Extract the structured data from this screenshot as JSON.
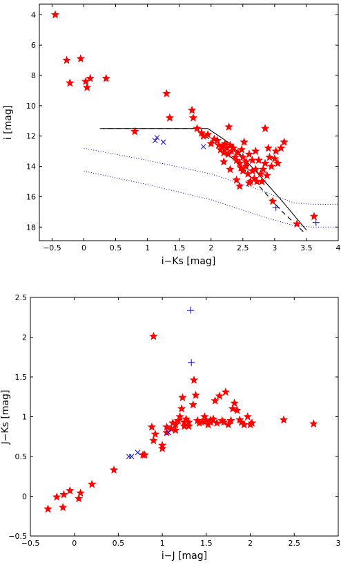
{
  "colors": {
    "stars": "#ff0000",
    "crosses": "#0000ff",
    "iso_lines": "#000000",
    "dotted": "#0000cc"
  },
  "chart_data": [
    {
      "type": "scatter",
      "xlabel": "i−Ks [mag]",
      "ylabel": "i [mag]",
      "xlim": [
        -0.7,
        4
      ],
      "ylim": [
        18.9,
        3.3
      ],
      "y_inverted": true,
      "xticks": [
        "−0.5",
        "0",
        "0.5",
        "1",
        "1.5",
        "2",
        "2.5",
        "3",
        "3.5",
        "4"
      ],
      "yticks": [
        "4",
        "6",
        "8",
        "10",
        "12",
        "14",
        "16",
        "18"
      ],
      "grid": false,
      "series": [
        {
          "marker": "star",
          "points": [
            [
              -0.45,
              4.0
            ],
            [
              -0.27,
              7.0
            ],
            [
              -0.22,
              8.5
            ],
            [
              -0.05,
              6.9
            ],
            [
              0.03,
              8.4
            ],
            [
              0.05,
              8.8
            ],
            [
              0.1,
              8.2
            ],
            [
              0.35,
              8.2
            ],
            [
              0.8,
              11.7
            ],
            [
              1.3,
              9.2
            ],
            [
              1.35,
              10.8
            ],
            [
              1.7,
              10.3
            ],
            [
              1.72,
              10.8
            ],
            [
              1.85,
              11.8
            ],
            [
              1.78,
              11.5
            ],
            [
              1.88,
              12.0
            ],
            [
              1.95,
              11.9
            ],
            [
              2.0,
              12.5
            ],
            [
              2.05,
              12.2
            ],
            [
              2.1,
              12.3
            ],
            [
              2.12,
              12.6
            ],
            [
              2.15,
              12.9
            ],
            [
              2.18,
              12.7
            ],
            [
              2.2,
              13.1
            ],
            [
              2.22,
              12.5
            ],
            [
              2.25,
              12.8
            ],
            [
              2.27,
              13.2
            ],
            [
              2.28,
              11.4
            ],
            [
              2.3,
              12.6
            ],
            [
              2.32,
              13.0
            ],
            [
              2.35,
              12.8
            ],
            [
              2.38,
              13.4
            ],
            [
              2.4,
              13.6
            ],
            [
              2.42,
              13.1
            ],
            [
              2.45,
              13.8
            ],
            [
              2.47,
              14.1
            ],
            [
              2.48,
              12.9
            ],
            [
              2.5,
              13.4
            ],
            [
              2.5,
              14.3
            ],
            [
              2.52,
              12.4
            ],
            [
              2.55,
              14.0
            ],
            [
              2.55,
              13.7
            ],
            [
              2.58,
              14.5
            ],
            [
              2.6,
              13.2
            ],
            [
              2.62,
              15.0
            ],
            [
              2.65,
              14.3
            ],
            [
              2.65,
              13.6
            ],
            [
              2.68,
              14.8
            ],
            [
              2.7,
              13.0
            ],
            [
              2.7,
              14.2
            ],
            [
              2.72,
              15.0
            ],
            [
              2.75,
              13.6
            ],
            [
              2.78,
              14.5
            ],
            [
              2.8,
              15.0
            ],
            [
              2.82,
              14.2
            ],
            [
              2.85,
              11.5
            ],
            [
              2.85,
              13.8
            ],
            [
              2.88,
              14.6
            ],
            [
              2.9,
              12.8
            ],
            [
              2.92,
              13.4
            ],
            [
              2.95,
              14.0
            ],
            [
              2.97,
              16.3
            ],
            [
              3.0,
              13.5
            ],
            [
              3.02,
              13.0
            ],
            [
              3.05,
              13.8
            ],
            [
              3.1,
              12.8
            ],
            [
              3.15,
              12.4
            ],
            [
              2.45,
              15.3
            ],
            [
              2.6,
              15.1
            ],
            [
              2.3,
              14.2
            ],
            [
              2.2,
              13.7
            ],
            [
              2.4,
              14.9
            ],
            [
              3.35,
              17.8
            ],
            [
              3.62,
              17.3
            ]
          ]
        },
        {
          "marker": "x",
          "points": [
            [
              1.12,
              12.3
            ],
            [
              1.15,
              12.1
            ],
            [
              1.25,
              12.4
            ],
            [
              1.88,
              12.7
            ]
          ]
        },
        {
          "marker": "plus",
          "points": [
            [
              3.02,
              16.7
            ],
            [
              3.65,
              17.7
            ]
          ]
        }
      ],
      "lines": [
        {
          "style": "solid",
          "points": [
            [
              0.3,
              11.5
            ],
            [
              1.95,
              11.5
            ],
            [
              2.3,
              12.5
            ],
            [
              2.7,
              14.3
            ],
            [
              3.1,
              16.2
            ],
            [
              3.5,
              18.2
            ]
          ]
        },
        {
          "style": "dashed",
          "points": [
            [
              0.25,
              11.5
            ],
            [
              1.75,
              11.5
            ],
            [
              2.2,
              12.9
            ],
            [
              2.65,
              14.8
            ],
            [
              3.1,
              16.9
            ],
            [
              3.45,
              18.3
            ]
          ]
        },
        {
          "style": "dotted",
          "points": [
            [
              0.0,
              12.8
            ],
            [
              1.0,
              13.6
            ],
            [
              2.0,
              14.5
            ],
            [
              2.8,
              15.6
            ],
            [
              3.3,
              16.4
            ],
            [
              3.6,
              16.5
            ],
            [
              4.0,
              16.5
            ]
          ]
        },
        {
          "style": "dotted",
          "points": [
            [
              0.0,
              14.3
            ],
            [
              1.0,
              15.2
            ],
            [
              2.0,
              16.2
            ],
            [
              2.8,
              17.3
            ],
            [
              3.3,
              17.9
            ],
            [
              3.6,
              18.0
            ],
            [
              4.0,
              18.0
            ]
          ]
        }
      ]
    },
    {
      "type": "scatter",
      "xlabel": "i−J [mag]",
      "ylabel": "J−Ks [mag]",
      "xlim": [
        -0.5,
        3
      ],
      "ylim": [
        -0.5,
        2.5
      ],
      "xticks": [
        "−0.5",
        "0",
        "0.5",
        "1",
        "1.5",
        "2",
        "2.5",
        "3"
      ],
      "yticks": [
        "−0.5",
        "0",
        "0.5",
        "1",
        "1.5",
        "2",
        "2.5"
      ],
      "grid": false,
      "series": [
        {
          "marker": "star",
          "points": [
            [
              -0.3,
              -0.16
            ],
            [
              -0.2,
              -0.01
            ],
            [
              -0.13,
              -0.14
            ],
            [
              -0.12,
              0.02
            ],
            [
              -0.05,
              0.07
            ],
            [
              0.05,
              -0.03
            ],
            [
              0.07,
              0.04
            ],
            [
              0.2,
              0.15
            ],
            [
              0.45,
              0.33
            ],
            [
              0.78,
              0.52
            ],
            [
              0.8,
              0.52
            ],
            [
              0.88,
              0.87
            ],
            [
              0.9,
              0.7
            ],
            [
              0.9,
              2.01
            ],
            [
              0.92,
              0.78
            ],
            [
              1.0,
              0.6
            ],
            [
              1.0,
              0.64
            ],
            [
              1.05,
              0.8
            ],
            [
              1.05,
              0.87
            ],
            [
              1.1,
              0.85
            ],
            [
              1.15,
              0.9
            ],
            [
              1.18,
              0.95
            ],
            [
              1.2,
              1.0
            ],
            [
              1.22,
              1.1
            ],
            [
              1.23,
              1.24
            ],
            [
              1.25,
              0.93
            ],
            [
              1.27,
              0.97
            ],
            [
              1.3,
              0.88
            ],
            [
              1.35,
              1.15
            ],
            [
              1.36,
              1.46
            ],
            [
              1.38,
              1.27
            ],
            [
              1.4,
              0.95
            ],
            [
              1.42,
              0.92
            ],
            [
              1.45,
              0.93
            ],
            [
              1.48,
              1.0
            ],
            [
              1.5,
              0.95
            ],
            [
              1.52,
              0.9
            ],
            [
              1.55,
              0.93
            ],
            [
              1.58,
              0.97
            ],
            [
              1.6,
              1.2
            ],
            [
              1.62,
              0.92
            ],
            [
              1.65,
              1.26
            ],
            [
              1.68,
              0.95
            ],
            [
              1.7,
              0.93
            ],
            [
              1.72,
              1.31
            ],
            [
              1.75,
              0.9
            ],
            [
              1.78,
              0.95
            ],
            [
              1.8,
              1.1
            ],
            [
              1.82,
              1.17
            ],
            [
              1.85,
              1.08
            ],
            [
              1.88,
              0.96
            ],
            [
              1.9,
              0.93
            ],
            [
              1.93,
              0.9
            ],
            [
              1.97,
              1.0
            ],
            [
              2.0,
              0.9
            ],
            [
              2.02,
              0.92
            ],
            [
              2.38,
              0.96
            ],
            [
              2.72,
              0.91
            ],
            [
              1.15,
              0.83
            ],
            [
              1.3,
              0.93
            ],
            [
              1.55,
              0.96
            ],
            [
              1.25,
              0.88
            ],
            [
              1.12,
              0.92
            ]
          ]
        },
        {
          "marker": "x",
          "points": [
            [
              0.62,
              0.5
            ],
            [
              0.65,
              0.5
            ],
            [
              0.72,
              0.55
            ],
            [
              1.07,
              0.8
            ]
          ]
        },
        {
          "marker": "plus",
          "points": [
            [
              1.32,
              2.34
            ],
            [
              1.33,
              1.68
            ]
          ]
        }
      ]
    }
  ]
}
